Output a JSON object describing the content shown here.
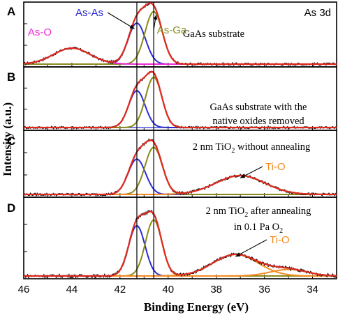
{
  "chart_data": {
    "type": "line",
    "corner_label": "As 3d",
    "xlabel": "Binding Energy (eV)",
    "ylabel": "Intensity (a.u.)",
    "xlim": [
      46,
      33
    ],
    "x_ticks": [
      46,
      44,
      42,
      40,
      38,
      36,
      34
    ],
    "reference_lines_x": [
      41.3,
      40.6
    ],
    "colors": {
      "data_points": "#1a1a1a",
      "envelope": "#e02a1e",
      "as_as": "#2b2bd6",
      "as_ga": "#8a8a1a",
      "as_o": "#ee2ad6",
      "ti_o": "#f58a1e",
      "baseline": "#2b2bd6",
      "text_label_color": "#000000"
    },
    "panels": [
      {
        "letter": "A",
        "caption_lines": [
          {
            "text": "GaAs substrate"
          }
        ],
        "component_labels": [
          {
            "text": "As-As",
            "color": "#2b2bd6"
          },
          {
            "text": "As-Ga",
            "color": "#8a8a1a"
          },
          {
            "text": "As-O",
            "color": "#ee2ad6"
          }
        ],
        "series": [
          {
            "component": "As-As",
            "center": 41.3,
            "height": 0.72,
            "fwhm": 0.85
          },
          {
            "component": "As-Ga",
            "center": 40.6,
            "height": 0.92,
            "fwhm": 0.85
          },
          {
            "component": "As-O",
            "center": 44.0,
            "height": 0.28,
            "fwhm": 1.8
          }
        ]
      },
      {
        "letter": "B",
        "caption_lines": [
          {
            "text": "GaAs substrate with the"
          },
          {
            "text": "native oxides removed"
          }
        ],
        "component_labels": [],
        "series": [
          {
            "component": "As-As",
            "center": 41.3,
            "height": 0.66,
            "fwhm": 0.8
          },
          {
            "component": "As-Ga",
            "center": 40.6,
            "height": 0.9,
            "fwhm": 0.8
          }
        ]
      },
      {
        "letter": "C",
        "caption_lines": [
          {
            "text": "2 nm TiO",
            "sub": "2",
            "after": " without annealing"
          }
        ],
        "component_labels": [
          {
            "text": "Ti-O",
            "color": "#f58a1e"
          }
        ],
        "series": [
          {
            "component": "As-As",
            "center": 41.3,
            "height": 0.6,
            "fwhm": 0.85
          },
          {
            "component": "As-Ga",
            "center": 40.6,
            "height": 0.8,
            "fwhm": 0.85
          },
          {
            "component": "Ti-O",
            "center": 37.0,
            "height": 0.32,
            "fwhm": 2.4
          }
        ]
      },
      {
        "letter": "D",
        "caption_lines": [
          {
            "text": "2 nm TiO",
            "sub": "2",
            "after": " after annealing"
          },
          {
            "text": "in 0.1 Pa O",
            "sub": "2",
            "after": ""
          }
        ],
        "component_labels": [
          {
            "text": "Ti-O",
            "color": "#f58a1e"
          }
        ],
        "series": [
          {
            "component": "As-As",
            "center": 41.3,
            "height": 0.7,
            "fwhm": 0.8
          },
          {
            "component": "As-Ga",
            "center": 40.6,
            "height": 0.78,
            "fwhm": 0.8
          },
          {
            "component": "Ti-O",
            "center": 37.2,
            "height": 0.3,
            "fwhm": 2.2
          },
          {
            "component": "Ti-O",
            "center": 35.0,
            "height": 0.09,
            "fwhm": 1.8
          }
        ]
      }
    ]
  }
}
